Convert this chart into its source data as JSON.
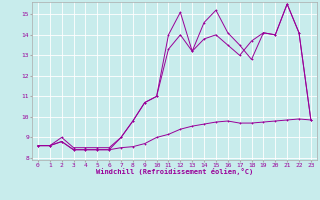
{
  "xlabel": "Windchill (Refroidissement éolien,°C)",
  "background_color": "#c8ecec",
  "grid_color": "#ffffff",
  "line_color": "#990099",
  "xlim": [
    -0.5,
    23.5
  ],
  "ylim": [
    7.9,
    15.6
  ],
  "yticks": [
    8,
    9,
    10,
    11,
    12,
    13,
    14,
    15
  ],
  "xticks": [
    0,
    1,
    2,
    3,
    4,
    5,
    6,
    7,
    8,
    9,
    10,
    11,
    12,
    13,
    14,
    15,
    16,
    17,
    18,
    19,
    20,
    21,
    22,
    23
  ],
  "line1_x": [
    0,
    1,
    2,
    3,
    4,
    5,
    6,
    7,
    8,
    9,
    10,
    11,
    12,
    13,
    14,
    15,
    16,
    17,
    18,
    19,
    20,
    21,
    22,
    23
  ],
  "line1_y": [
    8.6,
    8.6,
    8.8,
    8.4,
    8.4,
    8.4,
    8.4,
    8.5,
    8.55,
    8.7,
    9.0,
    9.15,
    9.4,
    9.55,
    9.65,
    9.75,
    9.8,
    9.7,
    9.7,
    9.75,
    9.8,
    9.85,
    9.9,
    9.85
  ],
  "line2_x": [
    0,
    1,
    2,
    3,
    4,
    5,
    6,
    7,
    8,
    9,
    10,
    11,
    12,
    13,
    14,
    15,
    16,
    17,
    18,
    19,
    20,
    21,
    22,
    23
  ],
  "line2_y": [
    8.6,
    8.6,
    9.0,
    8.5,
    8.5,
    8.5,
    8.5,
    9.0,
    9.8,
    10.7,
    11.0,
    14.0,
    15.1,
    13.2,
    14.6,
    15.2,
    14.1,
    13.5,
    12.8,
    14.1,
    14.0,
    15.5,
    14.1,
    9.85
  ],
  "line3_x": [
    0,
    1,
    2,
    3,
    4,
    5,
    6,
    7,
    8,
    9,
    10,
    11,
    12,
    13,
    14,
    15,
    16,
    17,
    18,
    19,
    20,
    21,
    22,
    23
  ],
  "line3_y": [
    8.6,
    8.6,
    8.8,
    8.4,
    8.4,
    8.4,
    8.4,
    9.0,
    9.8,
    10.7,
    11.0,
    13.3,
    14.0,
    13.2,
    13.8,
    14.0,
    13.5,
    13.0,
    13.7,
    14.1,
    14.0,
    15.5,
    14.1,
    9.85
  ],
  "tick_fontsize": 4.5,
  "xlabel_fontsize": 5.0,
  "lw": 0.7,
  "ms": 2.0
}
